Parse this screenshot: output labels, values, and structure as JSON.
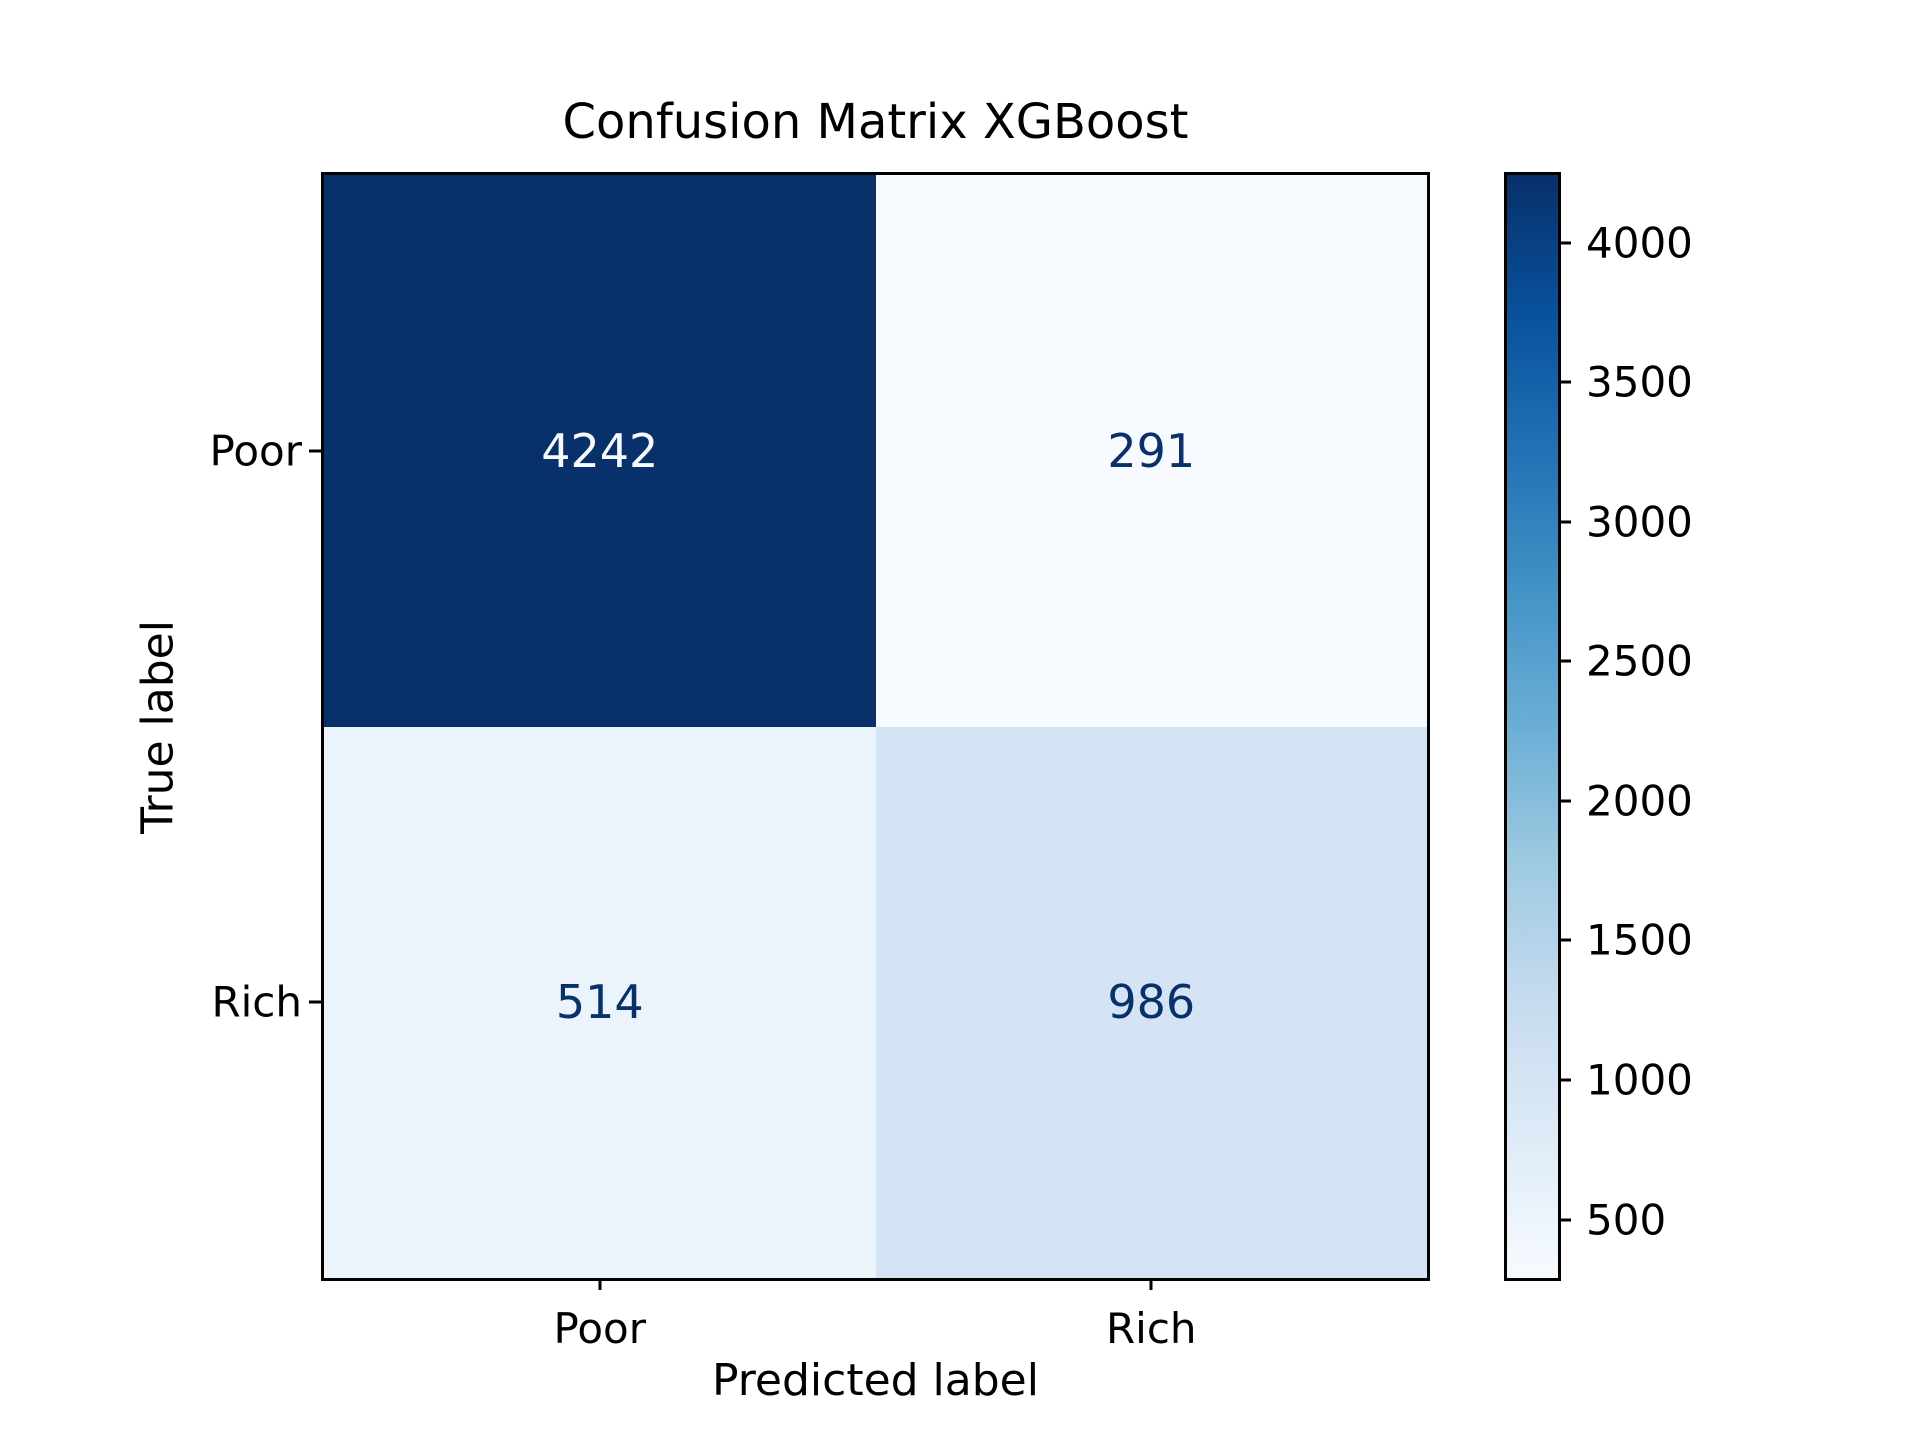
{
  "figure": {
    "background": "#ffffff"
  },
  "chart_data": {
    "type": "heatmap",
    "subtype": "confusion-matrix",
    "title": "Confusion Matrix XGBoost",
    "xlabel": "Predicted label",
    "ylabel": "True label",
    "x_categories": [
      "Poor",
      "Rich"
    ],
    "y_categories": [
      "Poor",
      "Rich"
    ],
    "matrix": [
      [
        4242,
        291
      ],
      [
        514,
        986
      ]
    ],
    "colormap": "Blues",
    "vmin": 291,
    "vmax": 4242,
    "colorbar_ticks": [
      500,
      1000,
      1500,
      2000,
      2500,
      3000,
      3500,
      4000
    ],
    "legend_position": "right-colorbar",
    "grid": false,
    "cell_colors": [
      [
        "#08306b",
        "#f7fbff"
      ],
      [
        "#ecf4fb",
        "#d4e4f4"
      ]
    ],
    "cell_text_colors": [
      [
        "#f7fbff",
        "#08306b"
      ],
      [
        "#08306b",
        "#08306b"
      ]
    ],
    "colormap_stops": [
      "#f7fbff",
      "#deebf7",
      "#c6dbef",
      "#9ecae1",
      "#6baed6",
      "#4292c6",
      "#2171b5",
      "#08519c",
      "#08306b"
    ]
  }
}
